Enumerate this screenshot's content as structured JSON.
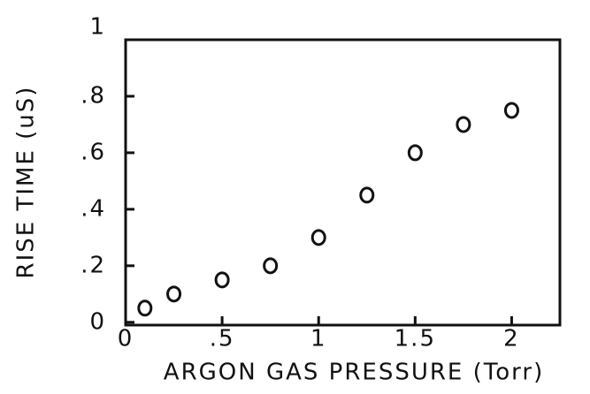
{
  "chart_data": {
    "type": "scatter",
    "xlabel": "ARGON GAS PRESSURE (Torr)",
    "ylabel": "RISE TIME (uS)",
    "x": [
      0.1,
      0.25,
      0.5,
      0.75,
      1.0,
      1.25,
      1.5,
      1.75,
      2.0
    ],
    "values": [
      0.05,
      0.1,
      0.15,
      0.2,
      0.3,
      0.45,
      0.6,
      0.7,
      0.75
    ],
    "color": "#111111",
    "xlim": [
      0,
      2.25
    ],
    "ylim": [
      -0.01,
      1
    ],
    "xticks": [
      0,
      {
        "value": 0.5,
        "label": ".5"
      },
      1,
      1.5,
      2
    ],
    "yticks": [
      0,
      {
        "value": 0.2,
        "label": ".2"
      },
      {
        "value": 0.4,
        "label": ".4"
      },
      {
        "value": 0.6,
        "label": ".6"
      },
      {
        "value": 0.8,
        "label": ".8"
      },
      1
    ],
    "grid": false
  }
}
